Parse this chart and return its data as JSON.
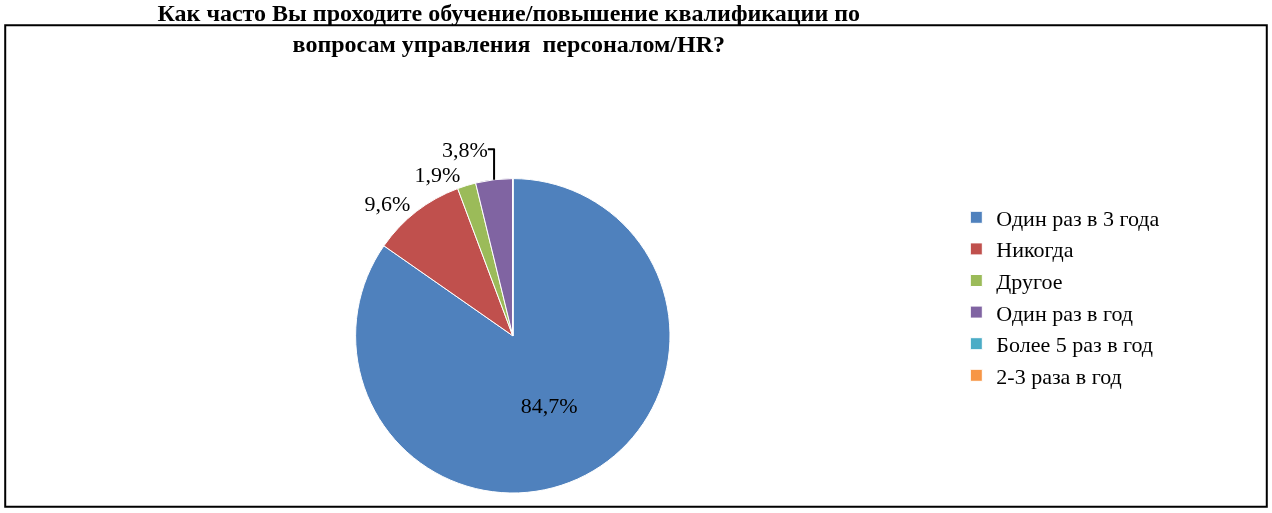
{
  "chart_data": {
    "type": "pie",
    "title": "Как часто Вы проходите обучение/повышение квалификации по\nвопросам управления  персоналом/HR?",
    "categories": [
      "Один раз в 3 года",
      "Никогда",
      "Другое",
      "Один раз в год",
      "Более 5 раз в год",
      "2-3 раза в год"
    ],
    "values": [
      84.7,
      9.6,
      1.9,
      3.8,
      0,
      0
    ],
    "value_labels": [
      "84,7%",
      "9,6%",
      "1,9%",
      "3,8%",
      null,
      null
    ],
    "colors": [
      "#4f81bd",
      "#c0504d",
      "#9bbb59",
      "#8064a2",
      "#4bacc6",
      "#f79646"
    ],
    "legend": "right"
  }
}
